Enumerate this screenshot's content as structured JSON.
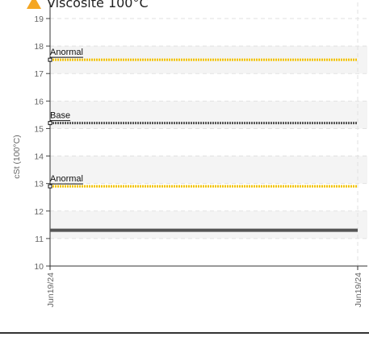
{
  "header": {
    "title": "Viscosité 100°C",
    "icon": "warning-triangle-icon",
    "icon_color": "#f5a623"
  },
  "chart_data": {
    "type": "line",
    "title": "Viscosité 100°C",
    "ylabel": "cSt (100°C)",
    "xlabel": "",
    "ylim": [
      10,
      19
    ],
    "yticks": [
      10,
      11,
      12,
      13,
      14,
      15,
      16,
      17,
      18,
      19
    ],
    "x_categories": [
      "Jun19/24",
      "Jun19/24"
    ],
    "grid": true,
    "reference_lines": [
      {
        "label": "Anormal",
        "y": 17.5,
        "color": "#f2c200",
        "style": "dotted"
      },
      {
        "label": "Base",
        "y": 15.2,
        "color": "#555555",
        "style": "dotted"
      },
      {
        "label": "Anormal",
        "y": 12.9,
        "color": "#f2c200",
        "style": "dotted"
      }
    ],
    "series": [
      {
        "values": [
          11.3,
          11.3
        ],
        "color": "#555555"
      }
    ]
  }
}
